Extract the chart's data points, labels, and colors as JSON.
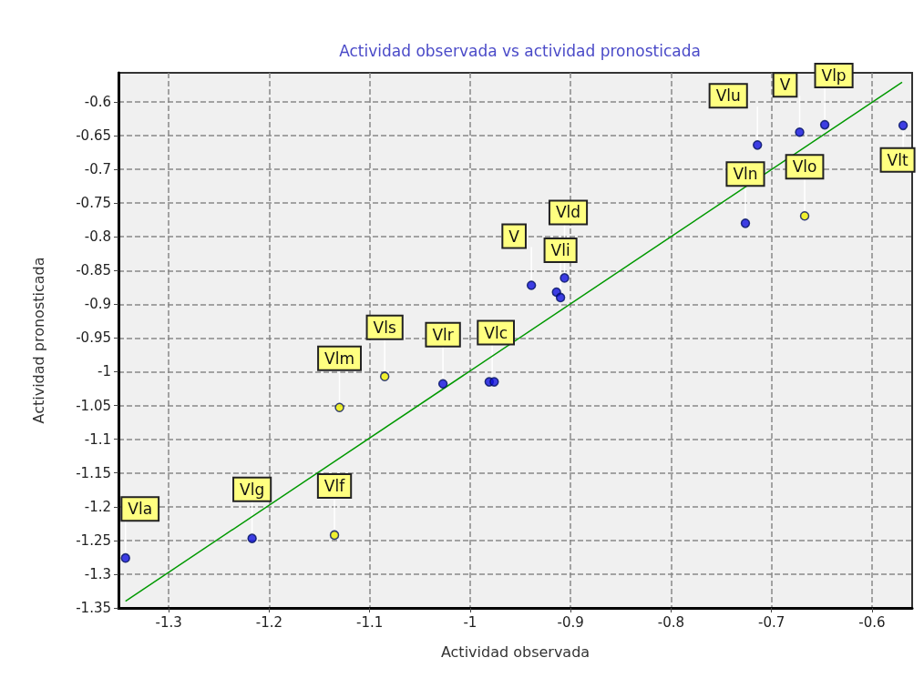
{
  "chart_data": {
    "type": "scatter",
    "title": "Actividad observada vs actividad pronosticada",
    "xlabel": "Actividad observada",
    "ylabel": "Actividad pronosticada",
    "xlim": [
      -1.35,
      -0.56
    ],
    "ylim": [
      -1.35,
      -0.557
    ],
    "xticks": [
      -1.3,
      -1.2,
      -1.1,
      -1,
      -0.9,
      -0.8,
      -0.7,
      -0.6
    ],
    "yticks": [
      -1.35,
      -1.3,
      -1.25,
      -1.2,
      -1.15,
      -1.1,
      -1.05,
      -1,
      -0.95,
      -0.9,
      -0.85,
      -0.8,
      -0.75,
      -0.7,
      -0.65,
      -0.6
    ],
    "grid": true,
    "marker": "circle",
    "series": [
      {
        "type": "line",
        "marker": "none",
        "color": "#009900",
        "x": [
          -1.343,
          -0.57
        ],
        "values": [
          -1.34,
          -0.571
        ]
      },
      {
        "color": "#1010e0",
        "x": [
          -1.343,
          -1.217,
          -1.027,
          -0.981,
          -0.976,
          -0.939,
          -0.914,
          -0.91,
          -0.906,
          -0.726,
          -0.714,
          -0.672,
          -0.647,
          -0.569
        ],
        "values": [
          -1.276,
          -1.247,
          -1.018,
          -1.015,
          -1.015,
          -0.872,
          -0.882,
          -0.89,
          -0.861,
          -0.78,
          -0.664,
          -0.645,
          -0.634,
          -0.635
        ]
      },
      {
        "color": "#f0f000",
        "x": [
          -1.135,
          -1.13,
          -1.085,
          -0.667
        ],
        "values": [
          -1.242,
          -1.053,
          -1.007,
          -0.769
        ]
      }
    ],
    "annotations": [
      {
        "text": "Vla",
        "x": -1.343,
        "y": -1.276
      },
      {
        "text": "Vlg",
        "x": -1.217,
        "y": -1.247
      },
      {
        "text": "Vlf",
        "x": -1.135,
        "y": -1.242
      },
      {
        "text": "Vlm",
        "x": -1.13,
        "y": -1.053
      },
      {
        "text": "Vls",
        "x": -1.085,
        "y": -1.007
      },
      {
        "text": "Vlr",
        "x": -1.027,
        "y": -1.018
      },
      {
        "text": "Vlc",
        "x": -0.978,
        "y": -1.015
      },
      {
        "text": "V",
        "x": -0.939,
        "y": -0.872
      },
      {
        "text": "Vld",
        "x": -0.906,
        "y": -0.861
      },
      {
        "text": "Vli",
        "x": -0.91,
        "y": -0.89
      },
      {
        "text": "Vln",
        "x": -0.726,
        "y": -0.78
      },
      {
        "text": "Vlo",
        "x": -0.667,
        "y": -0.769
      },
      {
        "text": "Vlu",
        "x": -0.714,
        "y": -0.664
      },
      {
        "text": "V",
        "x": -0.672,
        "y": -0.645
      },
      {
        "text": "Vlp",
        "x": -0.647,
        "y": -0.634
      },
      {
        "text": "Vlt",
        "x": -0.569,
        "y": -0.635
      }
    ]
  }
}
